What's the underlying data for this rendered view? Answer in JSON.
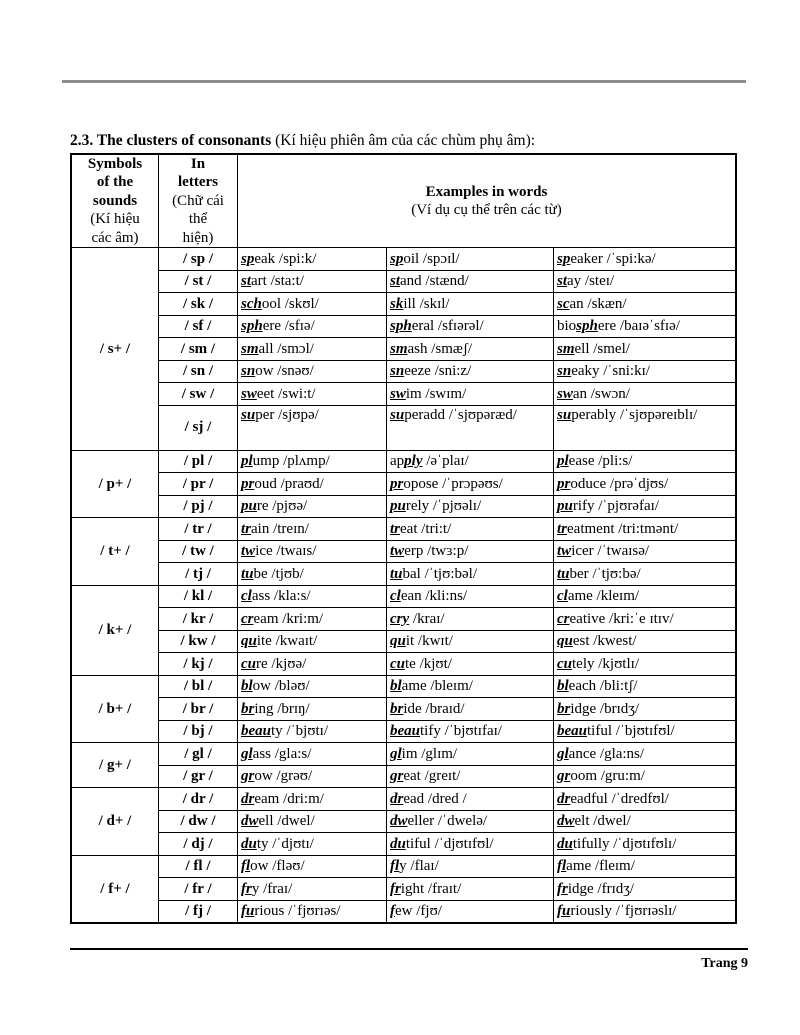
{
  "heading": {
    "bold": "2.3. The clusters of consonants",
    "normal": " (Kí hiệu phiên âm của các chùm phụ âm):"
  },
  "table_header": {
    "col1": [
      "Symbols",
      "of the",
      "sounds",
      "(Kí hiệu",
      "các âm)"
    ],
    "col2": [
      "In",
      "letters",
      "(Chữ cái",
      "thể",
      "hiện)"
    ],
    "col3_title": "Examples in words",
    "col3_sub": "(Ví dụ cụ thể trên các từ)"
  },
  "groups": [
    {
      "symbol": "/ s+ /",
      "rows": [
        {
          "letters": "/ sp /",
          "ex": [
            {
              "pre": "",
              "hl": "sp",
              "post": "eak /spi:k/"
            },
            {
              "pre": "",
              "hl": "sp",
              "post": "oil /spɔɪl/"
            },
            {
              "pre": "",
              "hl": "sp",
              "post": "eaker /ˈspi:kə/"
            }
          ]
        },
        {
          "letters": "/ st /",
          "ex": [
            {
              "pre": "",
              "hl": "st",
              "post": "art /sta:t/"
            },
            {
              "pre": "",
              "hl": "st",
              "post": "and /stænd/"
            },
            {
              "pre": "",
              "hl": "st",
              "post": "ay /steɪ/"
            }
          ]
        },
        {
          "letters": "/ sk /",
          "ex": [
            {
              "pre": "",
              "hl": "sch",
              "post": "ool /skʊl/"
            },
            {
              "pre": "",
              "hl": "sk",
              "post": "ill /skɪl/"
            },
            {
              "pre": "",
              "hl": "sc",
              "post": "an /skæn/"
            }
          ]
        },
        {
          "letters": "/ sf /",
          "ex": [
            {
              "pre": "",
              "hl": "sph",
              "post": "ere /sfɪə/"
            },
            {
              "pre": "",
              "hl": "sph",
              "post": "eral /sfɪərəl/"
            },
            {
              "pre": "bio",
              "hl": "sph",
              "post": "ere /baɪəˈsfɪə/"
            }
          ]
        },
        {
          "letters": "/ sm /",
          "ex": [
            {
              "pre": "",
              "hl": "sm",
              "post": "all /smɔl/"
            },
            {
              "pre": "",
              "hl": "sm",
              "post": "ash /smæʃ/"
            },
            {
              "pre": "",
              "hl": "sm",
              "post": "ell /smel/"
            }
          ]
        },
        {
          "letters": "/ sn /",
          "ex": [
            {
              "pre": "",
              "hl": "sn",
              "post": "ow /snəʊ/"
            },
            {
              "pre": "",
              "hl": "sn",
              "post": "eeze /sni:z/"
            },
            {
              "pre": "",
              "hl": "sn",
              "post": "eaky /ˈsni:kɪ/"
            }
          ]
        },
        {
          "letters": "/ sw /",
          "ex": [
            {
              "pre": "",
              "hl": "sw",
              "post": "eet /swi:t/"
            },
            {
              "pre": "",
              "hl": "sw",
              "post": "im /swɪm/"
            },
            {
              "pre": "",
              "hl": "sw",
              "post": "an /swɔn/"
            }
          ]
        },
        {
          "letters": "/ sj /",
          "tall": true,
          "ex": [
            {
              "pre": "",
              "hl": "su",
              "post": "per /sjʊpə/"
            },
            {
              "pre": "",
              "hl": "su",
              "post": "peradd /ˈsjʊpəræd/"
            },
            {
              "pre": "",
              "hl": "su",
              "post": "perably /ˈsjʊpəreɪblɪ/"
            }
          ]
        }
      ]
    },
    {
      "symbol": "/ p+ /",
      "rows": [
        {
          "letters": "/ pl /",
          "ex": [
            {
              "pre": "",
              "hl": "pl",
              "post": "ump /plʌmp/"
            },
            {
              "pre": "ap",
              "hl": "ply",
              "post": " /əˈplaɪ/"
            },
            {
              "pre": "",
              "hl": "pl",
              "post": "ease /pli:s/"
            }
          ]
        },
        {
          "letters": "/ pr /",
          "ex": [
            {
              "pre": "",
              "hl": "pr",
              "post": "oud /praʊd/"
            },
            {
              "pre": "",
              "hl": "pr",
              "post": "opose /ˈprɔpəʊs/"
            },
            {
              "pre": "",
              "hl": "pr",
              "post": "oduce /prəˈdjʊs/"
            }
          ]
        },
        {
          "letters": "/ pj /",
          "ex": [
            {
              "pre": "",
              "hl": "pu",
              "post": "re /pjʊə/"
            },
            {
              "pre": "",
              "hl": "pu",
              "post": "rely /ˈpjʊəlɪ/"
            },
            {
              "pre": "",
              "hl": "pu",
              "post": "rify /ˈpjʊrəfaɪ/"
            }
          ]
        }
      ]
    },
    {
      "symbol": "/ t+ /",
      "rows": [
        {
          "letters": "/ tr /",
          "ex": [
            {
              "pre": "",
              "hl": "tr",
              "post": "ain /treɪn/"
            },
            {
              "pre": "",
              "hl": "tr",
              "post": "eat /tri:t/"
            },
            {
              "pre": "",
              "hl": "tr",
              "post": "eatment /tri:tmənt/"
            }
          ]
        },
        {
          "letters": "/ tw /",
          "ex": [
            {
              "pre": "",
              "hl": "tw",
              "post": "ice /twaɪs/"
            },
            {
              "pre": "",
              "hl": "tw",
              "post": "erp /twɜ:p/"
            },
            {
              "pre": "",
              "hl": "tw",
              "post": "icer /ˈtwaɪsə/"
            }
          ]
        },
        {
          "letters": "/ tj /",
          "ex": [
            {
              "pre": "",
              "hl": "tu",
              "post": "be /tjʊb/"
            },
            {
              "pre": "",
              "hl": "tu",
              "post": "bal /ˈtjʊ:bəl/"
            },
            {
              "pre": "",
              "hl": "tu",
              "post": "ber /ˈtjʊ:bə/"
            }
          ]
        }
      ]
    },
    {
      "symbol": "/ k+ /",
      "rows": [
        {
          "letters": "/ kl /",
          "ex": [
            {
              "pre": "",
              "hl": "cl",
              "post": "ass /kla:s/"
            },
            {
              "pre": "",
              "hl": "cl",
              "post": "ean /kli:ns/"
            },
            {
              "pre": "",
              "hl": "cl",
              "post": "ame /kleɪm/"
            }
          ]
        },
        {
          "letters": "/ kr /",
          "ex": [
            {
              "pre": "",
              "hl": "cr",
              "post": "eam /kri:m/"
            },
            {
              "pre": "",
              "hl": "cry",
              "post": " /kraɪ/"
            },
            {
              "pre": "",
              "hl": "cr",
              "post": "eative /kri:ˈe ɪtɪv/"
            }
          ]
        },
        {
          "letters": "/ kw /",
          "ex": [
            {
              "pre": "",
              "hl": "qu",
              "post": "ite /kwaɪt/"
            },
            {
              "pre": "",
              "hl": "qu",
              "post": "it /kwɪt/"
            },
            {
              "pre": "",
              "hl": "qu",
              "post": "est /kwest/"
            }
          ]
        },
        {
          "letters": "/ kj /",
          "ex": [
            {
              "pre": "",
              "hl": "cu",
              "post": "re /kjʊə/"
            },
            {
              "pre": "",
              "hl": "cu",
              "post": "te /kjʊt/"
            },
            {
              "pre": "",
              "hl": "cu",
              "post": "tely /kjʊtlɪ/"
            }
          ]
        }
      ]
    },
    {
      "symbol": "/ b+ /",
      "rows": [
        {
          "letters": "/ bl /",
          "ex": [
            {
              "pre": "",
              "hl": "bl",
              "post": "ow /bləʊ/"
            },
            {
              "pre": "",
              "hl": "bl",
              "post": "ame /bleɪm/"
            },
            {
              "pre": "",
              "hl": "bl",
              "post": "each /bli:tʃ/"
            }
          ]
        },
        {
          "letters": "/ br /",
          "ex": [
            {
              "pre": "",
              "hl": "br",
              "post": "ing /brɪŋ/"
            },
            {
              "pre": "",
              "hl": "br",
              "post": "ide /braɪd/"
            },
            {
              "pre": "",
              "hl": "br",
              "post": "idge /brɪdʒ/"
            }
          ]
        },
        {
          "letters": "/ bj /",
          "ex": [
            {
              "pre": "",
              "hl": "beau",
              "post": "ty /ˈbjʊtɪ/"
            },
            {
              "pre": "",
              "hl": "beau",
              "post": "tify /ˈbjʊtɪfaɪ/"
            },
            {
              "pre": "",
              "hl": "beau",
              "post": "tiful /ˈbjʊtɪfʊl/"
            }
          ]
        }
      ]
    },
    {
      "symbol": "/ g+ /",
      "rows": [
        {
          "letters": "/ gl /",
          "ex": [
            {
              "pre": "",
              "hl": "gl",
              "post": "ass /gla:s/"
            },
            {
              "pre": "",
              "hl": "gl",
              "post": "im /glɪm/"
            },
            {
              "pre": "",
              "hl": "gl",
              "post": "ance /gla:ns/"
            }
          ]
        },
        {
          "letters": "/ gr /",
          "ex": [
            {
              "pre": "",
              "hl": "gr",
              "post": "ow /grəʊ/"
            },
            {
              "pre": "",
              "hl": "gr",
              "post": "eat /greɪt/"
            },
            {
              "pre": "",
              "hl": "gr",
              "post": "oom /gru:m/"
            }
          ]
        }
      ]
    },
    {
      "symbol": "/ d+ /",
      "rows": [
        {
          "letters": "/ dr /",
          "ex": [
            {
              "pre": "",
              "hl": "dr",
              "post": "eam /dri:m/"
            },
            {
              "pre": "",
              "hl": "dr",
              "post": "ead /dred /"
            },
            {
              "pre": "",
              "hl": "dr",
              "post": "eadful /ˈdredfʊl/"
            }
          ]
        },
        {
          "letters": "/ dw /",
          "ex": [
            {
              "pre": "",
              "hl": "dw",
              "post": "ell /dwel/"
            },
            {
              "pre": "",
              "hl": "dw",
              "post": "eller /ˈdwelə/"
            },
            {
              "pre": "",
              "hl": "dw",
              "post": "elt /dwel/"
            }
          ]
        },
        {
          "letters": "/ dj /",
          "ex": [
            {
              "pre": "",
              "hl": "du",
              "post": "ty /ˈdjʊtɪ/"
            },
            {
              "pre": "",
              "hl": "du",
              "post": "tiful /ˈdjʊtɪfʊl/"
            },
            {
              "pre": "",
              "hl": "du",
              "post": "tifully /ˈdjʊtɪfʊlɪ/"
            }
          ]
        }
      ]
    },
    {
      "symbol": "/ f+ /",
      "rows": [
        {
          "letters": "/ fl /",
          "ex": [
            {
              "pre": "",
              "hl": "fl",
              "post": "ow /fləʊ/"
            },
            {
              "pre": "",
              "hl": "fl",
              "post": "y /flaɪ/"
            },
            {
              "pre": "",
              "hl": "fl",
              "post": "ame /fleɪm/"
            }
          ]
        },
        {
          "letters": "/ fr /",
          "ex": [
            {
              "pre": "",
              "hl": "fr",
              "post": "y /fraɪ/"
            },
            {
              "pre": "",
              "hl": "fr",
              "post": "ight /fraɪt/"
            },
            {
              "pre": "",
              "hl": "fr",
              "post": "idge /frɪdʒ/"
            }
          ]
        },
        {
          "letters": "/ fj /",
          "ex": [
            {
              "pre": "",
              "hl": "fu",
              "post": "rious /ˈfjʊrɪəs/"
            },
            {
              "pre": "",
              "hl": "f",
              "post": "ew /fjʊ/"
            },
            {
              "pre": "",
              "hl": "fu",
              "post": "riously /ˈfjʊrɪəslɪ/"
            }
          ]
        }
      ]
    }
  ],
  "footer": {
    "page": "Trang 9"
  }
}
